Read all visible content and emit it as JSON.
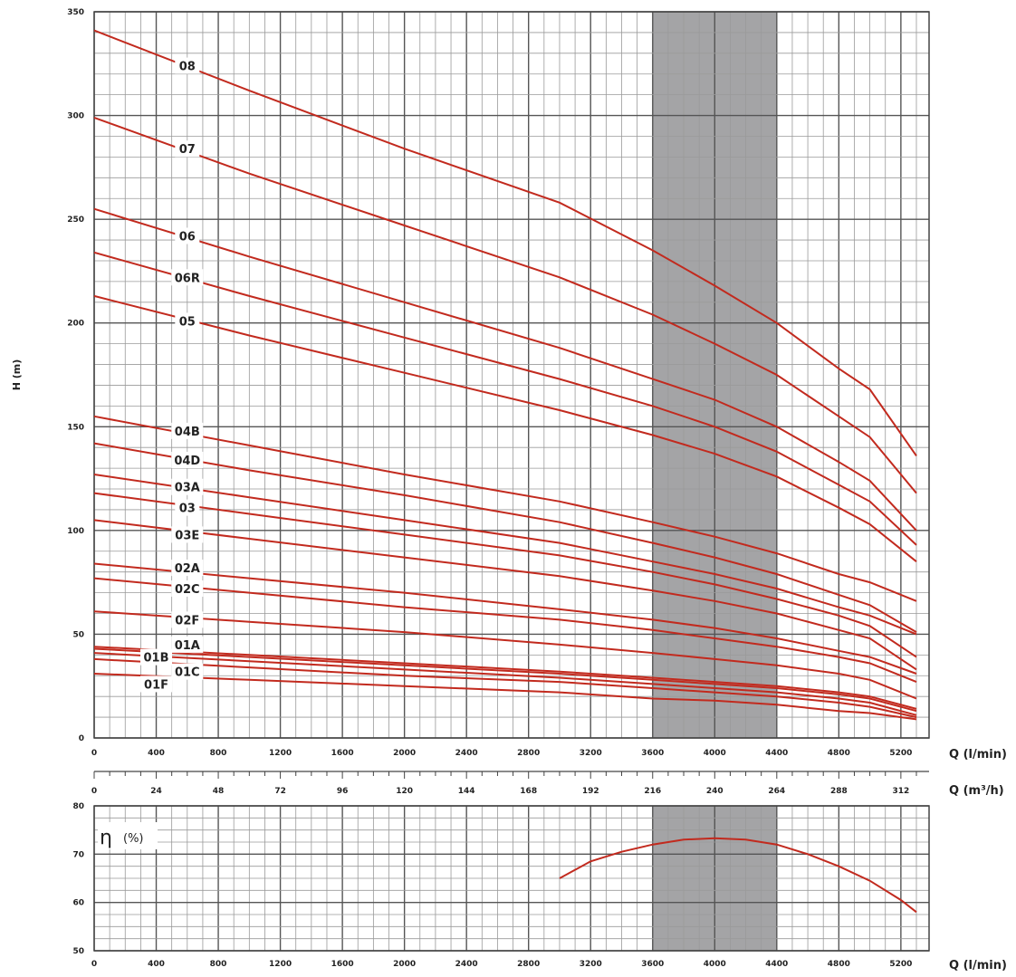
{
  "chart_data": [
    {
      "type": "line",
      "ylabel": "H (m)",
      "xlabel": "Q (l/min)",
      "xlabel2": "Q (m³/h)",
      "xlim": [
        0,
        5300
      ],
      "ylim": [
        0,
        350
      ],
      "x_ticks": [
        "0",
        "400",
        "800",
        "1200",
        "1600",
        "2000",
        "2400",
        "2800",
        "3200",
        "3600",
        "4000",
        "4400",
        "4800",
        "5200"
      ],
      "x2_ticks": [
        "0",
        "24",
        "48",
        "72",
        "96",
        "120",
        "144",
        "168",
        "192",
        "216",
        "240",
        "264",
        "288",
        "312"
      ],
      "y_ticks": [
        "0",
        "50",
        "100",
        "150",
        "200",
        "250",
        "300",
        "350"
      ],
      "grid": true,
      "highlight_range": [
        3600,
        4400
      ],
      "colors": {
        "curve": "#c22a1e",
        "band": "#a4a4a6",
        "grid": "#888888",
        "grid_major": "#555555"
      },
      "series": [
        {
          "name": "08",
          "label_at": [
            600,
            324
          ],
          "points": [
            [
              0,
              341
            ],
            [
              1000,
              312
            ],
            [
              2000,
              284
            ],
            [
              3000,
              258
            ],
            [
              3600,
              235
            ],
            [
              4000,
              218
            ],
            [
              4400,
              200
            ],
            [
              4800,
              178
            ],
            [
              5000,
              168
            ],
            [
              5300,
              136
            ]
          ]
        },
        {
          "name": "07",
          "label_at": [
            600,
            284
          ],
          "points": [
            [
              0,
              299
            ],
            [
              1000,
              272
            ],
            [
              2000,
              247
            ],
            [
              3000,
              222
            ],
            [
              3600,
              204
            ],
            [
              4000,
              190
            ],
            [
              4400,
              175
            ],
            [
              4800,
              155
            ],
            [
              5000,
              145
            ],
            [
              5300,
              118
            ]
          ]
        },
        {
          "name": "06",
          "label_at": [
            600,
            242
          ],
          "points": [
            [
              0,
              255
            ],
            [
              1000,
              232
            ],
            [
              2000,
              210
            ],
            [
              3000,
              188
            ],
            [
              3600,
              173
            ],
            [
              4000,
              163
            ],
            [
              4400,
              150
            ],
            [
              4800,
              133
            ],
            [
              5000,
              124
            ],
            [
              5300,
              100
            ]
          ]
        },
        {
          "name": "06R",
          "label_at": [
            600,
            222
          ],
          "points": [
            [
              0,
              234
            ],
            [
              1000,
              213
            ],
            [
              2000,
              193
            ],
            [
              3000,
              173
            ],
            [
              3600,
              160
            ],
            [
              4000,
              150
            ],
            [
              4400,
              138
            ],
            [
              4800,
              122
            ],
            [
              5000,
              114
            ],
            [
              5300,
              93
            ]
          ]
        },
        {
          "name": "05",
          "label_at": [
            600,
            201
          ],
          "points": [
            [
              0,
              213
            ],
            [
              1000,
              194
            ],
            [
              2000,
              176
            ],
            [
              3000,
              158
            ],
            [
              3600,
              146
            ],
            [
              4000,
              137
            ],
            [
              4400,
              126
            ],
            [
              4800,
              111
            ],
            [
              5000,
              103
            ],
            [
              5300,
              85
            ]
          ]
        },
        {
          "name": "04B",
          "label_at": [
            600,
            148
          ],
          "points": [
            [
              0,
              155
            ],
            [
              1000,
              141
            ],
            [
              2000,
              127
            ],
            [
              3000,
              114
            ],
            [
              3600,
              104
            ],
            [
              4000,
              97
            ],
            [
              4400,
              89
            ],
            [
              4800,
              79
            ],
            [
              5000,
              75
            ],
            [
              5300,
              66
            ]
          ]
        },
        {
          "name": "04D",
          "label_at": [
            600,
            134
          ],
          "points": [
            [
              0,
              142
            ],
            [
              1000,
              129
            ],
            [
              2000,
              117
            ],
            [
              3000,
              104
            ],
            [
              3600,
              94
            ],
            [
              4000,
              87
            ],
            [
              4400,
              79
            ],
            [
              4800,
              69
            ],
            [
              5000,
              64
            ],
            [
              5300,
              51
            ]
          ]
        },
        {
          "name": "03A",
          "label_at": [
            600,
            121
          ],
          "points": [
            [
              0,
              127
            ],
            [
              1000,
              116
            ],
            [
              2000,
              105
            ],
            [
              3000,
              94
            ],
            [
              3600,
              85
            ],
            [
              4000,
              79
            ],
            [
              4400,
              72
            ],
            [
              4800,
              63
            ],
            [
              5000,
              59
            ],
            [
              5300,
              50
            ]
          ]
        },
        {
          "name": "03",
          "label_at": [
            600,
            111
          ],
          "points": [
            [
              0,
              118
            ],
            [
              1000,
              108
            ],
            [
              2000,
              98
            ],
            [
              3000,
              88
            ],
            [
              3600,
              80
            ],
            [
              4000,
              74
            ],
            [
              4400,
              67
            ],
            [
              4800,
              59
            ],
            [
              5000,
              54
            ],
            [
              5300,
              39
            ]
          ]
        },
        {
          "name": "03E",
          "label_at": [
            600,
            98
          ],
          "points": [
            [
              0,
              105
            ],
            [
              1000,
              96
            ],
            [
              2000,
              87
            ],
            [
              3000,
              78
            ],
            [
              3600,
              71
            ],
            [
              4000,
              66
            ],
            [
              4400,
              60
            ],
            [
              4800,
              52
            ],
            [
              5000,
              48
            ],
            [
              5300,
              33
            ]
          ]
        },
        {
          "name": "02A",
          "label_at": [
            600,
            82
          ],
          "points": [
            [
              0,
              84
            ],
            [
              1000,
              77
            ],
            [
              2000,
              70
            ],
            [
              3000,
              62
            ],
            [
              3600,
              57
            ],
            [
              4000,
              53
            ],
            [
              4400,
              48
            ],
            [
              4800,
              42
            ],
            [
              5000,
              39
            ],
            [
              5300,
              31
            ]
          ]
        },
        {
          "name": "02C",
          "label_at": [
            600,
            72
          ],
          "points": [
            [
              0,
              77
            ],
            [
              1000,
              70
            ],
            [
              2000,
              63
            ],
            [
              3000,
              57
            ],
            [
              3600,
              52
            ],
            [
              4000,
              48
            ],
            [
              4400,
              44
            ],
            [
              4800,
              39
            ],
            [
              5000,
              36
            ],
            [
              5300,
              27
            ]
          ]
        },
        {
          "name": "02F",
          "label_at": [
            600,
            57
          ],
          "points": [
            [
              0,
              61
            ],
            [
              1000,
              56
            ],
            [
              2000,
              51
            ],
            [
              3000,
              45
            ],
            [
              3600,
              41
            ],
            [
              4000,
              38
            ],
            [
              4400,
              35
            ],
            [
              4800,
              31
            ],
            [
              5000,
              28
            ],
            [
              5300,
              19
            ]
          ]
        },
        {
          "name": "01A",
          "label_at": [
            600,
            45
          ],
          "points": [
            [
              0,
              44
            ],
            [
              1000,
              40
            ],
            [
              2000,
              36
            ],
            [
              3000,
              32
            ],
            [
              3600,
              29
            ],
            [
              4000,
              27
            ],
            [
              4400,
              25
            ],
            [
              4800,
              22
            ],
            [
              5000,
              20
            ],
            [
              5300,
              14
            ]
          ]
        },
        {
          "name": "01B",
          "label_at": [
            400,
            39
          ],
          "points": [
            [
              0,
              43
            ],
            [
              1000,
              39
            ],
            [
              2000,
              35
            ],
            [
              3000,
              31
            ],
            [
              3600,
              28
            ],
            [
              4000,
              26
            ],
            [
              4400,
              24
            ],
            [
              4800,
              21
            ],
            [
              5000,
              19
            ],
            [
              5300,
              13
            ]
          ]
        },
        {
          "name": "01C",
          "label_at": [
            600,
            32
          ],
          "points": [
            [
              0,
              41
            ],
            [
              1000,
              37
            ],
            [
              2000,
              33
            ],
            [
              3000,
              29
            ],
            [
              3600,
              26
            ],
            [
              4000,
              24
            ],
            [
              4400,
              22
            ],
            [
              4800,
              19
            ],
            [
              5000,
              17
            ],
            [
              5300,
              11
            ]
          ]
        },
        {
          "name": "01F",
          "label_at": [
            400,
            26
          ],
          "points": [
            [
              0,
              38
            ],
            [
              1000,
              34
            ],
            [
              2000,
              30
            ],
            [
              3000,
              27
            ],
            [
              3600,
              24
            ],
            [
              4000,
              22
            ],
            [
              4400,
              20
            ],
            [
              4800,
              17
            ],
            [
              5000,
              15
            ],
            [
              5300,
              10
            ]
          ]
        },
        {
          "name": "",
          "points": [
            [
              0,
              31
            ],
            [
              1000,
              28
            ],
            [
              2000,
              25
            ],
            [
              3000,
              22
            ],
            [
              3600,
              19
            ],
            [
              4000,
              18
            ],
            [
              4400,
              16
            ],
            [
              4800,
              13
            ],
            [
              5000,
              12
            ],
            [
              5300,
              9
            ]
          ]
        }
      ]
    },
    {
      "type": "line",
      "ylabel": "η (%)",
      "xlabel": "Q (l/min)",
      "xlim": [
        0,
        5300
      ],
      "ylim": [
        50,
        80
      ],
      "x_ticks": [
        "0",
        "400",
        "800",
        "1200",
        "1600",
        "2000",
        "2400",
        "2800",
        "3200",
        "3600",
        "4000",
        "4400",
        "4800",
        "5200"
      ],
      "y_ticks": [
        "50",
        "60",
        "70",
        "80"
      ],
      "eta_symbol": "η",
      "eta_unit": "(%)",
      "grid": true,
      "highlight_range": [
        3600,
        4400
      ],
      "series": [
        {
          "name": "",
          "points": [
            [
              3000,
              65
            ],
            [
              3200,
              68.5
            ],
            [
              3400,
              70.5
            ],
            [
              3600,
              72
            ],
            [
              3800,
              73
            ],
            [
              4000,
              73.3
            ],
            [
              4200,
              73
            ],
            [
              4400,
              72
            ],
            [
              4600,
              70
            ],
            [
              4800,
              67.5
            ],
            [
              5000,
              64.5
            ],
            [
              5200,
              60.5
            ],
            [
              5300,
              58
            ]
          ]
        }
      ]
    }
  ]
}
